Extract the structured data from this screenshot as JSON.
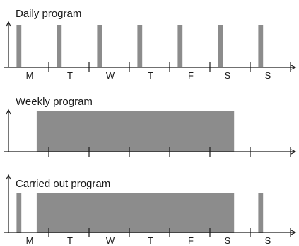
{
  "colors": {
    "bar": "#8c8c8c",
    "axis": "#1a1a1a",
    "background": "#ffffff"
  },
  "panels": [
    {
      "title": "Daily program",
      "days": [
        "M",
        "T",
        "W",
        "T",
        "F",
        "S",
        "S"
      ],
      "bars": [
        {
          "label": "M pulse",
          "start_day": 0.2,
          "end_day": 0.32
        },
        {
          "label": "T pulse",
          "start_day": 1.2,
          "end_day": 1.32
        },
        {
          "label": "W pulse",
          "start_day": 2.2,
          "end_day": 2.32
        },
        {
          "label": "T pulse",
          "start_day": 3.2,
          "end_day": 3.32
        },
        {
          "label": "F pulse",
          "start_day": 4.2,
          "end_day": 4.32
        },
        {
          "label": "S pulse",
          "start_day": 5.2,
          "end_day": 5.32
        },
        {
          "label": "S pulse",
          "start_day": 6.2,
          "end_day": 6.32
        }
      ]
    },
    {
      "title": "Weekly program",
      "days": [],
      "bars": [
        {
          "label": "weekly block",
          "start_day": 0.7,
          "end_day": 5.6
        }
      ]
    },
    {
      "title": "Carried out program",
      "days": [
        "M",
        "T",
        "W",
        "T",
        "F",
        "S",
        "S"
      ],
      "bars": [
        {
          "label": "M pulse",
          "start_day": 0.2,
          "end_day": 0.32
        },
        {
          "label": "weekly block",
          "start_day": 0.7,
          "end_day": 5.6
        },
        {
          "label": "S pulse",
          "start_day": 6.2,
          "end_day": 6.32
        }
      ]
    }
  ]
}
